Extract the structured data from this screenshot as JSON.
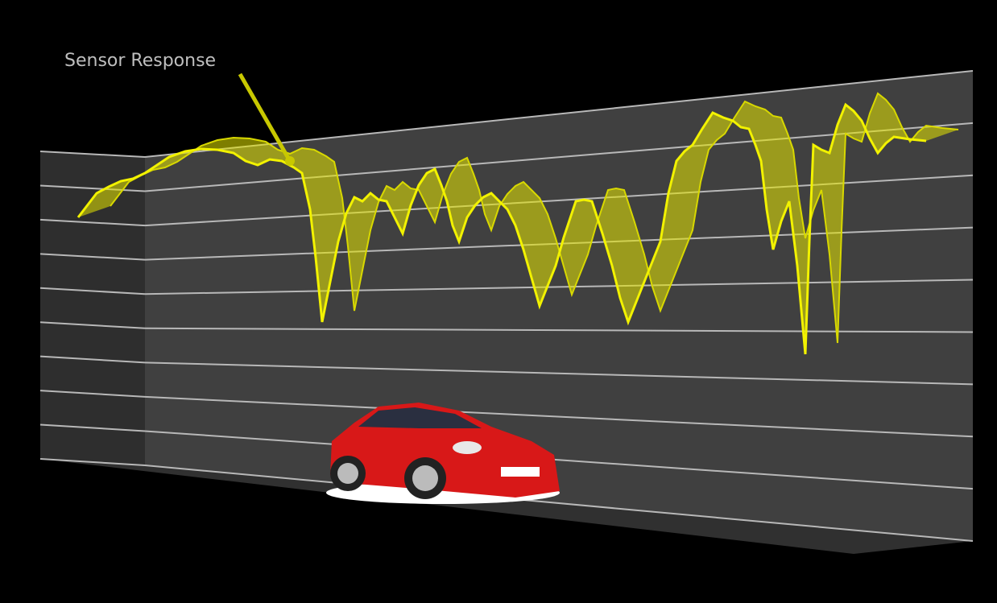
{
  "annotation": "Sensor Response"
}
